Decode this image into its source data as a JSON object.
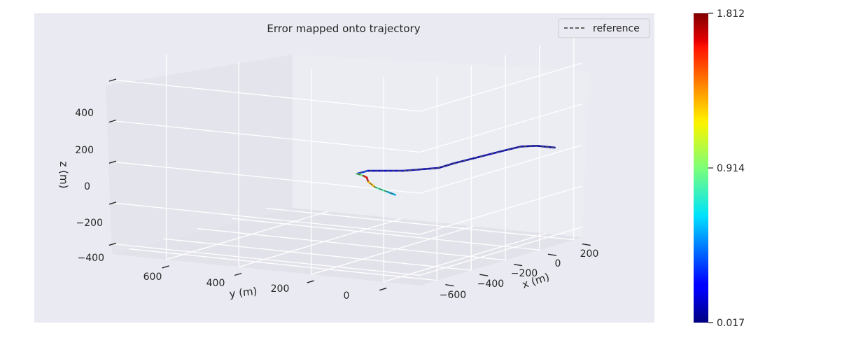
{
  "chart_data": {
    "type": "line",
    "projection": "3d",
    "title": "Error mapped onto trajectory",
    "xlabel": "x (m)",
    "ylabel": "y (m)",
    "zlabel": "z (m)",
    "x_ticks": [
      -600,
      -400,
      -200,
      0,
      200
    ],
    "y_ticks": [
      600,
      400,
      200,
      0
    ],
    "z_ticks": [
      400,
      200,
      0,
      -200,
      -400
    ],
    "x_tick_labels": [
      "−600",
      "−400",
      "−200",
      "0",
      "200"
    ],
    "y_tick_labels": [
      "600",
      "400",
      "200",
      "0"
    ],
    "z_tick_labels": [
      "400",
      "200",
      "0",
      "−200",
      "−400"
    ],
    "legend": {
      "entries": [
        "reference"
      ],
      "placement": "top-right",
      "style": "dashed",
      "color": "#555555"
    },
    "grid": true,
    "colormap": "jet",
    "colorbar": {
      "min": 0.017,
      "mid": 0.914,
      "max": 1.812,
      "tick_labels": [
        "1.812",
        "0.914",
        "0.017"
      ]
    },
    "series": [
      {
        "name": "reference",
        "x": [
          110,
          110,
          60,
          -50,
          -190,
          -330,
          -420,
          -500,
          -540,
          -540,
          -500,
          -460,
          -430,
          -410,
          -400,
          -400
        ],
        "y": [
          -90,
          -40,
          -20,
          -20,
          -20,
          -20,
          -20,
          40,
          120,
          150,
          150,
          160,
          170,
          160,
          130,
          110
        ],
        "z": [
          20,
          20,
          25,
          30,
          35,
          40,
          40,
          35,
          30,
          10,
          -10,
          -30,
          -60,
          -90,
          -110,
          -120
        ],
        "error": [
          0.1,
          0.1,
          0.1,
          0.15,
          0.15,
          0.1,
          0.12,
          0.15,
          0.2,
          0.5,
          1.3,
          1.75,
          1.45,
          1.05,
          0.6,
          0.55
        ]
      }
    ]
  }
}
